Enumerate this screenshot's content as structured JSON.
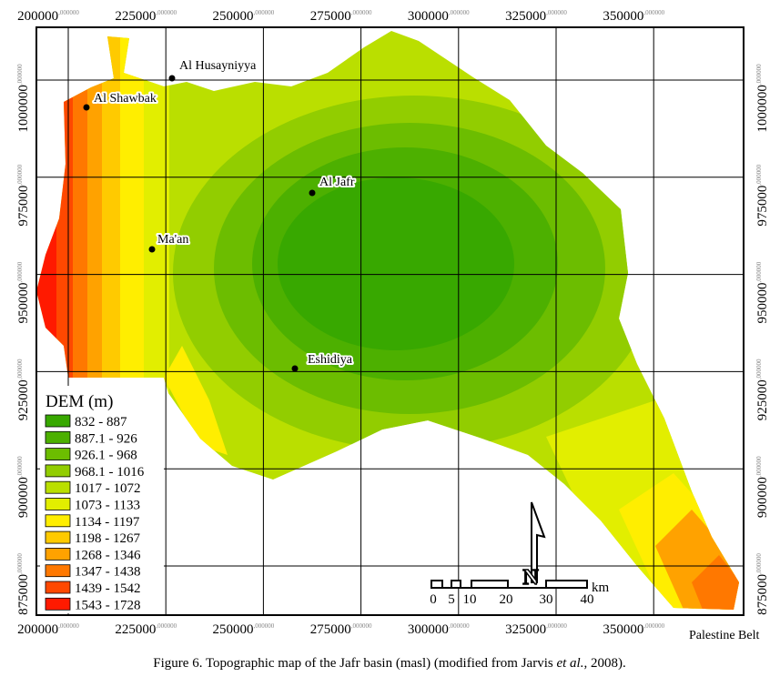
{
  "map": {
    "x_ticks": [
      {
        "main": "200000",
        "frac": ",000000"
      },
      {
        "main": "225000",
        "frac": ",000000"
      },
      {
        "main": "250000",
        "frac": ",000000"
      },
      {
        "main": "275000",
        "frac": ",000000"
      },
      {
        "main": "300000",
        "frac": ",000000"
      },
      {
        "main": "325000",
        "frac": ",000000"
      },
      {
        "main": "350000",
        "frac": ",000000"
      }
    ],
    "y_ticks": [
      {
        "main": "1000000",
        "frac": ",000000"
      },
      {
        "main": "975000",
        "frac": ",000000"
      },
      {
        "main": "950000",
        "frac": ",000000"
      },
      {
        "main": "925000",
        "frac": ",000000"
      },
      {
        "main": "900000",
        "frac": ",000000"
      },
      {
        "main": "875000",
        "frac": ",000000"
      }
    ],
    "places": [
      {
        "name": "Al Husayniyya"
      },
      {
        "name": "Al Shawbak"
      },
      {
        "name": "Al Jafr"
      },
      {
        "name": "Ma'an"
      },
      {
        "name": "Eshidiya"
      }
    ],
    "legend": {
      "title": "DEM (m)",
      "items": [
        {
          "label": "832 - 887",
          "color": "#38a800"
        },
        {
          "label": "887.1 - 926",
          "color": "#4db000"
        },
        {
          "label": "926.1 - 968",
          "color": "#6cbd00"
        },
        {
          "label": "968.1 - 1016",
          "color": "#92cd00"
        },
        {
          "label": "1017 - 1072",
          "color": "#badf00"
        },
        {
          "label": "1073 - 1133",
          "color": "#e2ee00"
        },
        {
          "label": "1134 - 1197",
          "color": "#ffee00"
        },
        {
          "label": "1198 - 1267",
          "color": "#ffca00"
        },
        {
          "label": "1268 - 1346",
          "color": "#ffa200"
        },
        {
          "label": "1347 - 1438",
          "color": "#ff7800"
        },
        {
          "label": "1439 - 1542",
          "color": "#ff4800"
        },
        {
          "label": "1543 - 1728",
          "color": "#ff1a00"
        }
      ]
    },
    "north": "N",
    "scale": {
      "labels": [
        "0",
        "5",
        "10",
        "20",
        "30",
        "40"
      ],
      "unit": "km"
    },
    "region_label": "Palestine Belt"
  },
  "caption": {
    "before": "Figure 6. Topographic map of the Jafr basin (masl) (modified from Jarvis ",
    "italic": "et al.",
    "after": ", 2008)."
  }
}
